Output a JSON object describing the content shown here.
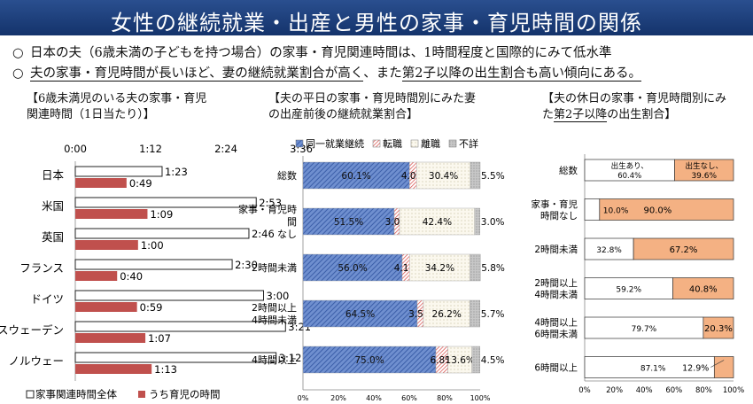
{
  "header": {
    "title": "女性の継続就業・出産と男性の家事・育児時間の関係"
  },
  "bullets": [
    {
      "marker": "○",
      "text": "日本の夫（6歳未満の子どもを持つ場合）の家事・育児関連時間は、1時間程度と国際的にみて低水準"
    },
    {
      "marker": "○",
      "text_a": "夫の家事・育児時間が長いほど、妻の継続就業割合が高く",
      "text_b": "、また",
      "text_c": "第2子以降の出生割合も高い傾向にある。"
    }
  ],
  "panels": {
    "left_title": "【6歳未満児のいる夫の家事・育児関連時間（1日当たり）】",
    "left_title_1": "【6歳未満児のいる夫の家事・育児",
    "left_title_2": "関連時間（1日当たり）】",
    "mid_title_1": "【夫の平日の家事・育児時間別にみた妻",
    "mid_title_2": "の出産前後の継続就業割合】",
    "right_title_pre": "【夫の休日の家事・育児時間別にみ",
    "right_title_2": "た",
    "right_title_u": "第2子以降",
    "right_title_post": "の出生割合】"
  },
  "colors": {
    "accent_red": "#c0504d",
    "blue": "#4f72b8",
    "orange": "#f4b183",
    "title_bg": "#1f3f7a"
  },
  "chart_data": [
    {
      "type": "bar",
      "orientation": "horizontal",
      "title": "【6歳未満児のいる夫の家事・育児関連時間（1日当たり）】",
      "unit": "時間",
      "x_ticks": [
        "0:00",
        "1:12",
        "2:24",
        "3:36"
      ],
      "xlim_minutes": [
        0,
        216
      ],
      "categories": [
        "日本",
        "米国",
        "英国",
        "フランス",
        "ドイツ",
        "スウェーデン",
        "ノルウェー"
      ],
      "series": [
        {
          "name": "家事関連時間全体",
          "labels": [
            "1:23",
            "2:53",
            "2:46",
            "2:30",
            "3:00",
            "3:21",
            "3:12"
          ],
          "values_minutes": [
            83,
            173,
            166,
            150,
            180,
            201,
            192
          ],
          "color": "#ffffff"
        },
        {
          "name": "うち育児の時間",
          "labels": [
            "0:49",
            "1:09",
            "1:00",
            "0:40",
            "0:59",
            "1:07",
            "1:13"
          ],
          "values_minutes": [
            49,
            69,
            60,
            40,
            59,
            67,
            73
          ],
          "color": "#c0504d"
        }
      ],
      "legend": "bottom"
    },
    {
      "type": "bar",
      "orientation": "horizontal",
      "stacked": true,
      "title": "【夫の平日の家事・育児時間別にみた妻の出産前後の継続就業割合】",
      "categories": [
        "総数",
        "家事・育児時間なし",
        "2時間未満",
        "2時間以上4時間未満",
        "4時間以上"
      ],
      "series": [
        {
          "name": "同一就業継続",
          "values": [
            60.1,
            51.5,
            56.0,
            64.5,
            75.0
          ],
          "color": "#4f72b8"
        },
        {
          "name": "転職",
          "values": [
            4.0,
            3.0,
            4.1,
            3.5,
            6.8
          ],
          "color": "#e8a3a0"
        },
        {
          "name": "離職",
          "values": [
            30.4,
            42.4,
            34.2,
            26.2,
            13.6
          ],
          "color": "#f7f3e4"
        },
        {
          "name": "不詳",
          "values": [
            5.5,
            3.0,
            5.8,
            5.7,
            4.5
          ],
          "color": "#d0d0d0"
        }
      ],
      "x_ticks": [
        "0%",
        "20%",
        "40%",
        "60%",
        "80%",
        "100%"
      ],
      "xlim": [
        0,
        100
      ],
      "legend": "top"
    },
    {
      "type": "bar",
      "orientation": "horizontal",
      "stacked": true,
      "title": "【夫の休日の家事・育児時間別にみた第2子以降の出生割合】",
      "categories": [
        "総数",
        "家事・育児時間なし",
        "2時間未満",
        "2時間以上4時間未満",
        "4時間以上6時間未満",
        "6時間以上"
      ],
      "series": [
        {
          "name": "出生あり",
          "values": [
            60.4,
            10.0,
            32.8,
            59.2,
            79.7,
            87.1
          ],
          "color": "#ffffff"
        },
        {
          "name": "出生なし",
          "values": [
            39.6,
            90.0,
            67.2,
            40.8,
            20.3,
            12.9
          ],
          "color": "#f4b183"
        }
      ],
      "x_ticks": [
        "0%",
        "20%",
        "40%",
        "60%",
        "80%",
        "100%"
      ],
      "xlim": [
        0,
        100
      ]
    }
  ]
}
